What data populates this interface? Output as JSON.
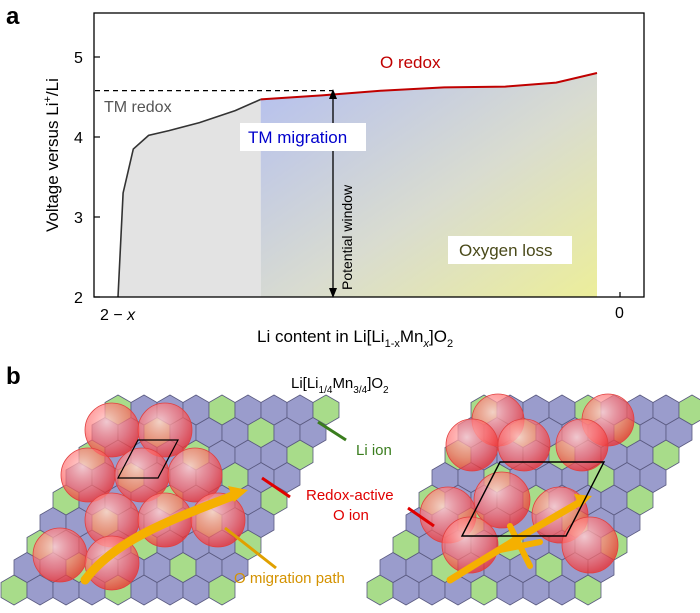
{
  "panel_a": {
    "label": "a",
    "ylabel_main": "Voltage versus Li",
    "ylabel_sup": "+",
    "ylabel_tail": "/Li",
    "xlabel_pre": "Li content in Li[Li",
    "xlabel_sub1": "1-x",
    "xlabel_mid": "Mn",
    "xlabel_sub2": "x",
    "xlabel_post": "]O",
    "xlabel_sub3": "2",
    "x_left_tick": "2 − x",
    "x_right_tick": "0",
    "y_ticks": [
      "2",
      "3",
      "4",
      "5"
    ],
    "labels": {
      "o_redox": "O redox",
      "tm_redox": "TM redox",
      "tm_migration": "TM migration",
      "potential_window": "Potential window",
      "oxygen_loss": "Oxygen loss"
    },
    "colors": {
      "o_redox": "#c00000",
      "tm_migration": "#0000cc",
      "tm_redox": "#555555",
      "oxygen_loss": "#4a4a1a"
    }
  },
  "chart_data": {
    "type": "line",
    "title": "",
    "xlabel": "Li content in Li[Li1-xMnx]O2",
    "ylabel": "Voltage versus Li+/Li",
    "ylim": [
      2,
      5.5
    ],
    "grid": false,
    "series": [
      {
        "name": "TM redox",
        "x": [
          0.0,
          0.01,
          0.03,
          0.06,
          0.1,
          0.16,
          0.23,
          0.28
        ],
        "y": [
          2.0,
          3.3,
          3.85,
          4.02,
          4.08,
          4.18,
          4.33,
          4.47
        ]
      },
      {
        "name": "O redox",
        "x": [
          0.28,
          0.4,
          0.52,
          0.64,
          0.76,
          0.86,
          0.94
        ],
        "y": [
          4.47,
          4.52,
          4.58,
          4.62,
          4.63,
          4.68,
          4.8
        ]
      }
    ],
    "reference_line_y": 4.58
  },
  "panel_b": {
    "label": "b",
    "formula_pre": "Li[Li",
    "formula_sub1": "1/4",
    "formula_mid": "Mn",
    "formula_sub2": "3/4",
    "formula_post": "]O",
    "formula_sub3": "2",
    "li_ion": "Li ion",
    "redox_line1": "Redox-active",
    "redox_line2": "O ion",
    "migration_path": "O migration path",
    "colors": {
      "li_ion": "#3a7d1e",
      "redox": "#e00000",
      "migration": "#e0a000"
    }
  }
}
